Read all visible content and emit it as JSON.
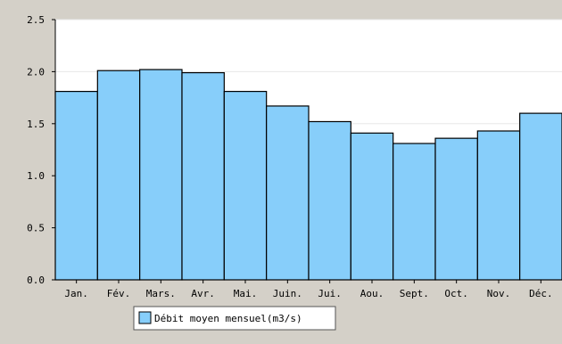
{
  "chart_data": {
    "type": "bar",
    "categories": [
      "Jan.",
      "Fév.",
      "Mars.",
      "Avr.",
      "Mai.",
      "Juin.",
      "Jui.",
      "Aou.",
      "Sept.",
      "Oct.",
      "Nov.",
      "Déc."
    ],
    "series": [
      {
        "name": "Débit moyen mensuel(m3/s)",
        "values": [
          1.81,
          2.01,
          2.02,
          1.99,
          1.81,
          1.67,
          1.52,
          1.41,
          1.31,
          1.36,
          1.43,
          1.6
        ]
      }
    ],
    "ylim": [
      0,
      2.5
    ],
    "yticks": [
      "0.0",
      "0.5",
      "1.0",
      "1.5",
      "2.0",
      "2.5"
    ],
    "grid": true,
    "legend_position": "bottom-left",
    "colors": {
      "bar_fill": "#87cefa",
      "bar_stroke": "#000000",
      "plot_background": "#ffffff",
      "frame_background": "#d4d0c8",
      "gridline": "#e8e8e8"
    }
  }
}
